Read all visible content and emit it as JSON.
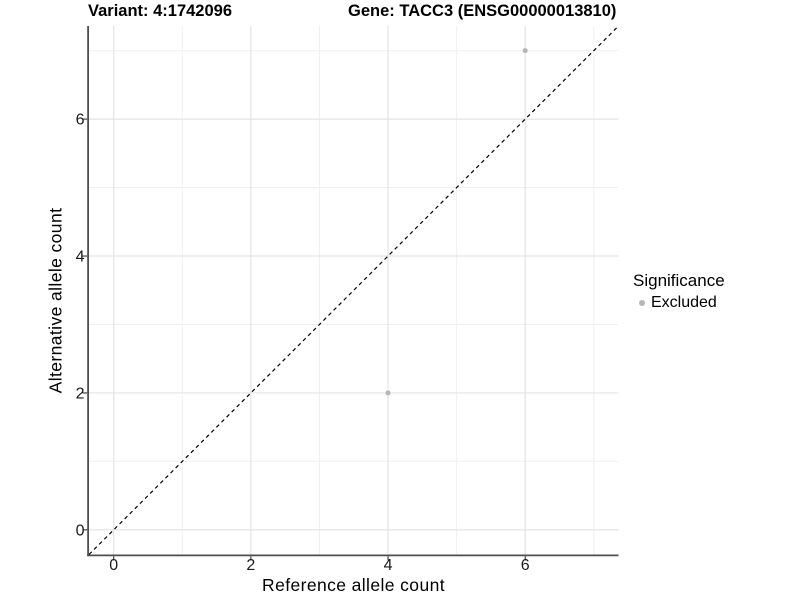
{
  "title": {
    "variant": "Variant: 4:1742096",
    "gene": "Gene: TACC3 (ENSG00000013810)"
  },
  "legend": {
    "title": "Significance",
    "items": [
      {
        "label": "Excluded",
        "color": "#b5b5b5"
      }
    ]
  },
  "colors": {
    "background": "#ffffff",
    "grid_major": "#e4e4e4",
    "grid_minor": "#f0f0f0",
    "axis_line": "#4f4f4f",
    "tick_mark": "#333333",
    "tick_text": "#1a1a1a",
    "point": "#b5b5b5",
    "reference_line": "#000000"
  },
  "chart_data": {
    "type": "scatter",
    "title": "Variant: 4:1742096    Gene: TACC3 (ENSG00000013810)",
    "xlabel": "Reference allele count",
    "ylabel": "Alternative allele count",
    "xlim": [
      -0.36,
      7.36
    ],
    "ylim": [
      -0.36,
      7.36
    ],
    "x_major_ticks": [
      0,
      2,
      4,
      6
    ],
    "y_major_ticks": [
      0,
      2,
      4,
      6
    ],
    "x_minor_ticks": [
      1,
      3,
      5,
      7
    ],
    "y_minor_ticks": [
      1,
      3,
      5,
      7
    ],
    "grid": "major and minor, light gray on white panel",
    "legend_position": "right",
    "series": [
      {
        "name": "Excluded",
        "color": "#b5b5b5",
        "marker": "circle",
        "points": [
          [
            4,
            2
          ],
          [
            6,
            7
          ]
        ]
      }
    ],
    "reference_line": {
      "type": "identity y=x",
      "style": "dashed",
      "color": "#000000",
      "from": [
        -0.36,
        -0.36
      ],
      "to": [
        7.36,
        7.36
      ]
    }
  }
}
